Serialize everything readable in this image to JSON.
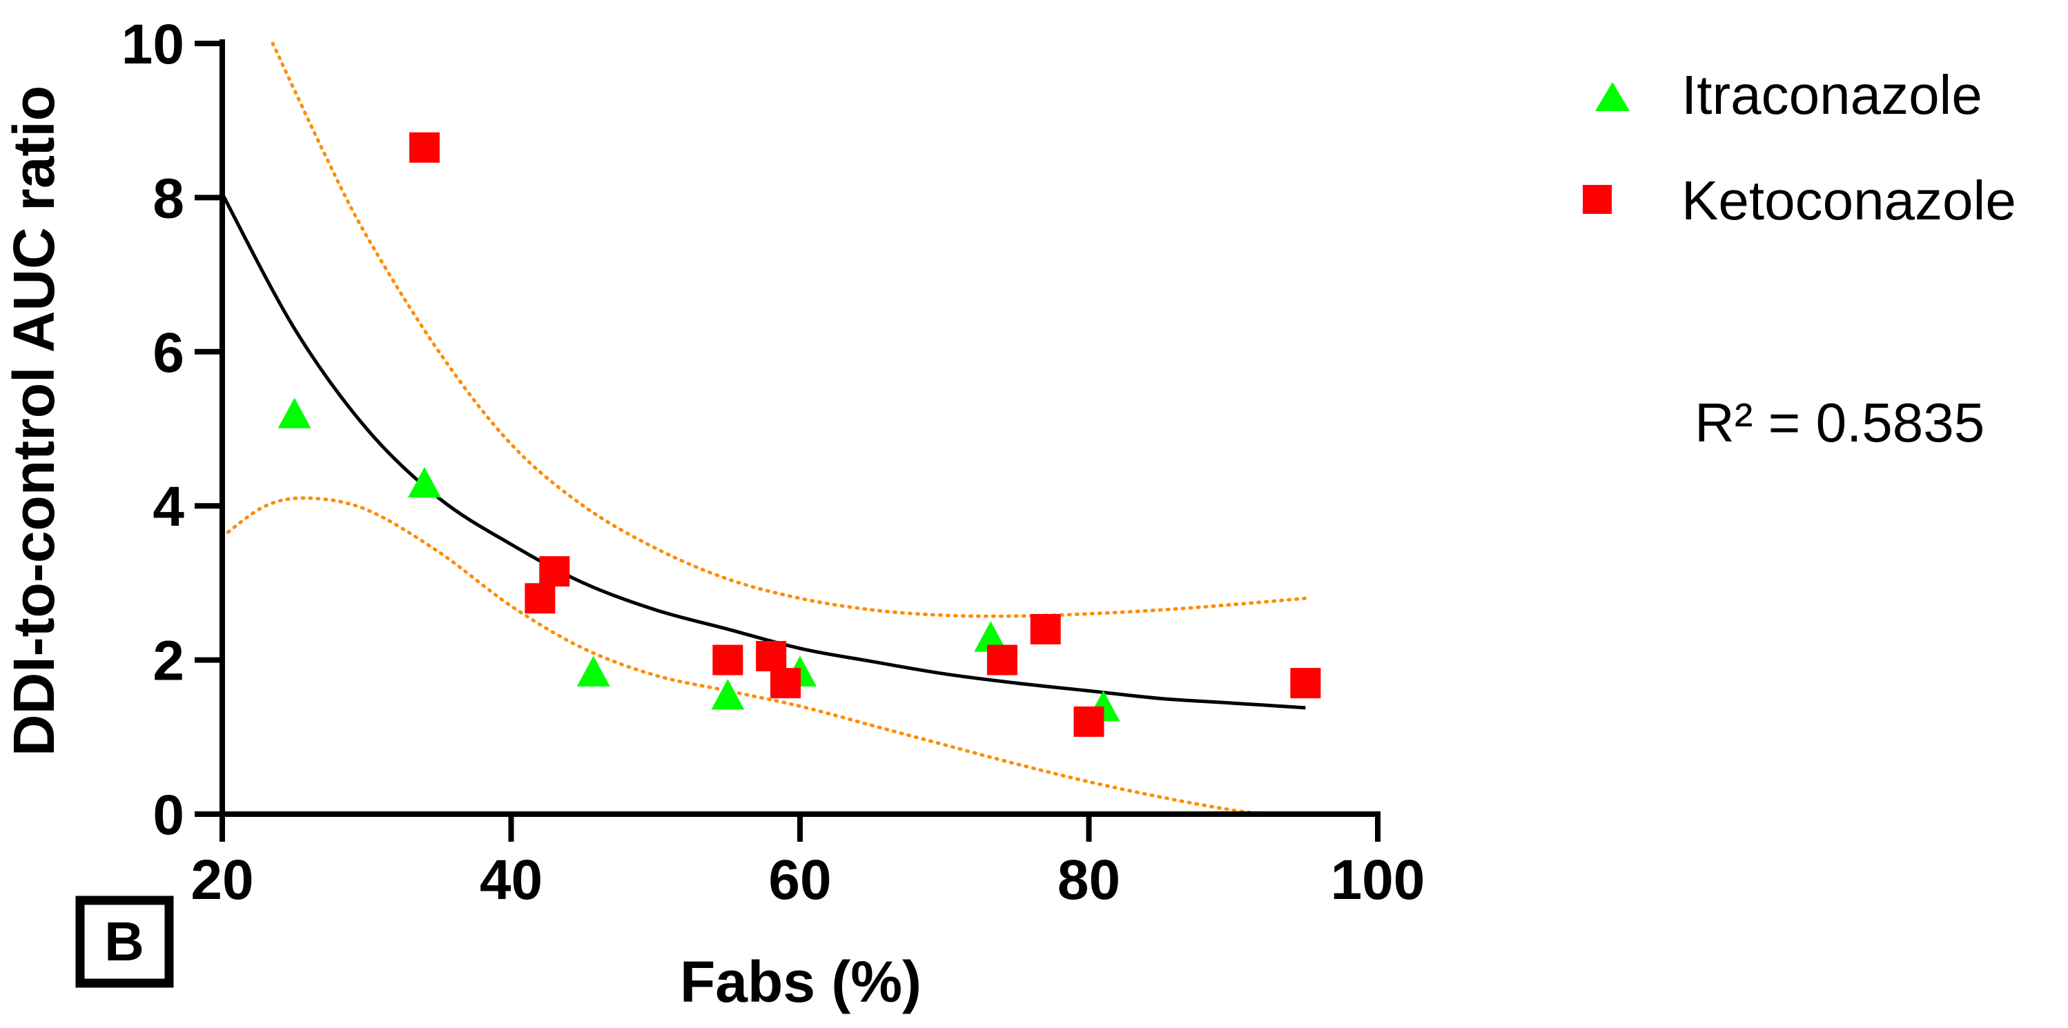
{
  "chart_data": {
    "type": "scatter",
    "title": "",
    "xlabel": "Fabs (%)",
    "ylabel": "DDI-to-control AUC ratio",
    "xlim": [
      20,
      100
    ],
    "ylim": [
      0,
      10
    ],
    "xticks": [
      20,
      40,
      60,
      80,
      100
    ],
    "yticks": [
      0,
      2,
      4,
      6,
      8,
      10
    ],
    "grid": false,
    "legend_position": "top-right",
    "series": [
      {
        "name": "Itraconazole",
        "marker": "triangle",
        "color": "#00ff00",
        "points": [
          {
            "x": 25,
            "y": 5.2
          },
          {
            "x": 34,
            "y": 4.3
          },
          {
            "x": 45.7,
            "y": 1.85
          },
          {
            "x": 55,
            "y": 1.55
          },
          {
            "x": 60,
            "y": 1.85
          },
          {
            "x": 73.2,
            "y": 2.3
          },
          {
            "x": 81,
            "y": 1.4
          }
        ]
      },
      {
        "name": "Ketoconazole",
        "marker": "square",
        "color": "#ff0000",
        "points": [
          {
            "x": 34,
            "y": 8.65
          },
          {
            "x": 42,
            "y": 2.8
          },
          {
            "x": 43,
            "y": 3.15
          },
          {
            "x": 55,
            "y": 2.0
          },
          {
            "x": 58,
            "y": 2.05
          },
          {
            "x": 59,
            "y": 1.7
          },
          {
            "x": 74,
            "y": 2.0
          },
          {
            "x": 77,
            "y": 2.4
          },
          {
            "x": 80,
            "y": 1.2
          },
          {
            "x": 95,
            "y": 1.7
          }
        ]
      }
    ],
    "fit_curve": {
      "color": "#000000",
      "points": [
        {
          "x": 20,
          "y": 8.05
        },
        {
          "x": 25,
          "y": 6.3
        },
        {
          "x": 30,
          "y": 5.0
        },
        {
          "x": 35,
          "y": 4.1
        },
        {
          "x": 40,
          "y": 3.5
        },
        {
          "x": 45,
          "y": 3.0
        },
        {
          "x": 50,
          "y": 2.65
        },
        {
          "x": 55,
          "y": 2.4
        },
        {
          "x": 60,
          "y": 2.15
        },
        {
          "x": 65,
          "y": 1.98
        },
        {
          "x": 70,
          "y": 1.82
        },
        {
          "x": 75,
          "y": 1.7
        },
        {
          "x": 80,
          "y": 1.6
        },
        {
          "x": 85,
          "y": 1.5
        },
        {
          "x": 90,
          "y": 1.44
        },
        {
          "x": 95,
          "y": 1.38
        }
      ]
    },
    "confidence_band": {
      "color": "#ff8c00",
      "upper": [
        {
          "x": 23.5,
          "y": 10.0
        },
        {
          "x": 27,
          "y": 8.6
        },
        {
          "x": 30,
          "y": 7.5
        },
        {
          "x": 35,
          "y": 6.0
        },
        {
          "x": 40,
          "y": 4.8
        },
        {
          "x": 45,
          "y": 4.0
        },
        {
          "x": 50,
          "y": 3.45
        },
        {
          "x": 55,
          "y": 3.05
        },
        {
          "x": 60,
          "y": 2.8
        },
        {
          "x": 65,
          "y": 2.65
        },
        {
          "x": 70,
          "y": 2.58
        },
        {
          "x": 75,
          "y": 2.57
        },
        {
          "x": 80,
          "y": 2.6
        },
        {
          "x": 85,
          "y": 2.65
        },
        {
          "x": 90,
          "y": 2.72
        },
        {
          "x": 95,
          "y": 2.8
        }
      ],
      "lower": [
        {
          "x": 20,
          "y": 3.6
        },
        {
          "x": 23,
          "y": 4.0
        },
        {
          "x": 26,
          "y": 4.1
        },
        {
          "x": 30,
          "y": 3.95
        },
        {
          "x": 35,
          "y": 3.4
        },
        {
          "x": 40,
          "y": 2.7
        },
        {
          "x": 45,
          "y": 2.15
        },
        {
          "x": 50,
          "y": 1.8
        },
        {
          "x": 55,
          "y": 1.6
        },
        {
          "x": 60,
          "y": 1.4
        },
        {
          "x": 65,
          "y": 1.15
        },
        {
          "x": 70,
          "y": 0.9
        },
        {
          "x": 75,
          "y": 0.65
        },
        {
          "x": 80,
          "y": 0.42
        },
        {
          "x": 85,
          "y": 0.22
        },
        {
          "x": 90,
          "y": 0.05
        },
        {
          "x": 92.5,
          "y": 0.0
        }
      ]
    },
    "annotation": "R² = 0.5835",
    "panel_label": "B"
  }
}
